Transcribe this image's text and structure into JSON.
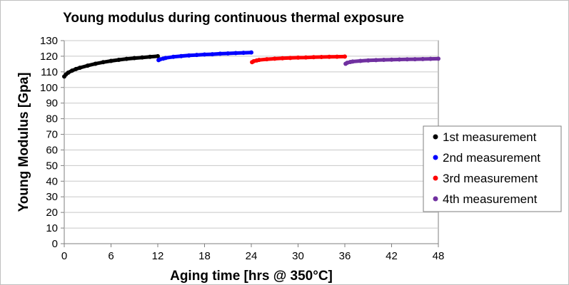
{
  "chart_data": {
    "type": "scatter",
    "title": "Young modulus during continuous thermal exposure",
    "xlabel": "Aging time [hrs @ 350°C]",
    "ylabel": "Young Modulus [Gpa]",
    "xlim": [
      0,
      48
    ],
    "ylim": [
      0,
      130
    ],
    "x_ticks": [
      0,
      6,
      12,
      18,
      24,
      30,
      36,
      42,
      48
    ],
    "y_ticks": [
      0,
      10,
      20,
      30,
      40,
      50,
      60,
      70,
      80,
      90,
      100,
      110,
      120,
      130
    ],
    "grid": "horizontal",
    "legend_position": "right",
    "series": [
      {
        "name": "1st measurement",
        "color": "#000000",
        "x": [
          0,
          0.2,
          0.5,
          1,
          1.5,
          2,
          3,
          4,
          5,
          6,
          7,
          8,
          9,
          10,
          11,
          12
        ],
        "y": [
          107,
          108.3,
          109.5,
          110.8,
          111.8,
          112.6,
          114,
          115.2,
          116.2,
          117,
          117.7,
          118.3,
          118.8,
          119.2,
          119.6,
          120
        ]
      },
      {
        "name": "2nd measurement",
        "color": "#0000ff",
        "x": [
          12.1,
          12.3,
          12.7,
          13,
          14,
          15,
          16,
          17,
          18,
          19,
          20,
          21,
          22,
          23,
          24
        ],
        "y": [
          117.5,
          118,
          118.5,
          118.9,
          119.6,
          120.1,
          120.5,
          120.8,
          121.1,
          121.3,
          121.6,
          121.8,
          122,
          122.2,
          122.4
        ]
      },
      {
        "name": "3rd measurement",
        "color": "#ff0000",
        "x": [
          24.1,
          24.3,
          24.7,
          25,
          26,
          27,
          28,
          29,
          30,
          31,
          32,
          33,
          34,
          35,
          36
        ],
        "y": [
          116.2,
          116.8,
          117.3,
          117.6,
          118.1,
          118.4,
          118.7,
          118.9,
          119.1,
          119.2,
          119.4,
          119.5,
          119.6,
          119.7,
          119.8
        ]
      },
      {
        "name": "4th measurement",
        "color": "#7030a0",
        "x": [
          36.1,
          36.3,
          36.7,
          37,
          38,
          39,
          40,
          41,
          42,
          43,
          44,
          45,
          46,
          47,
          48
        ],
        "y": [
          115.2,
          115.8,
          116.3,
          116.6,
          117,
          117.3,
          117.5,
          117.7,
          117.8,
          117.9,
          118,
          118.1,
          118.2,
          118.3,
          118.4
        ]
      }
    ]
  }
}
